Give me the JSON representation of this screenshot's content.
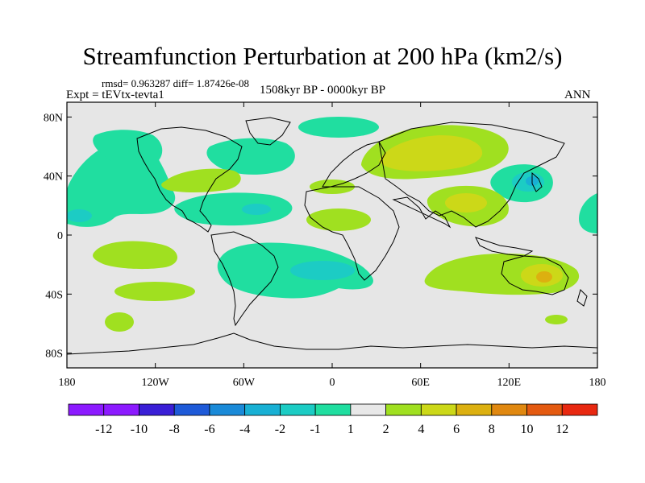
{
  "figure": {
    "title": "Streamfunction Perturbation at 200 hPa (km2/s)",
    "stats": "rmsd= 0.963287 diff= 1.87426e-08",
    "experiment": "Expt = tEVtx-tevta1",
    "period": "1508kyr BP - 0000kyr BP",
    "season": "ANN"
  },
  "axes": {
    "x_ticks": [
      "180",
      "120W",
      "60W",
      "0",
      "60E",
      "120E",
      "180"
    ],
    "y_ticks": [
      "80N",
      "40N",
      "0",
      "40S",
      "80S"
    ]
  },
  "colorbar": {
    "labels": [
      "-12",
      "-10",
      "-8",
      "-6",
      "-4",
      "-2",
      "-1",
      "1",
      "2",
      "4",
      "6",
      "8",
      "10",
      "12"
    ],
    "colors": [
      "#8c1aff",
      "#3a1fd6",
      "#1e5ad8",
      "#1a8ad8",
      "#18b0d4",
      "#1cccc4",
      "#20dea0",
      "#e8e8e8",
      "#a0e020",
      "#ccd818",
      "#dcb010",
      "#e08810",
      "#e45a10",
      "#e82810"
    ]
  },
  "chart_data": {
    "type": "heatmap",
    "projection": "cylindrical equidistant",
    "variable": "Streamfunction Perturbation at 200 hPa",
    "units": "km2/s",
    "lon_range": [
      -180,
      180
    ],
    "lat_range": [
      -90,
      90
    ],
    "contour_levels": [
      -12,
      -10,
      -8,
      -6,
      -4,
      -2,
      -1,
      1,
      2,
      4,
      6,
      8,
      10,
      12
    ],
    "regions": [
      {
        "name": "north-pacific-negative",
        "center": [
          -165,
          33
        ],
        "level": -2,
        "core_level": -4
      },
      {
        "name": "north-america-negative",
        "center": [
          -120,
          58
        ],
        "level": -2
      },
      {
        "name": "arctic-negative",
        "center": [
          -10,
          78
        ],
        "level": -2
      },
      {
        "name": "north-atlantic-negative",
        "center": [
          -40,
          60
        ],
        "level": -2
      },
      {
        "name": "tropical-atlantic-negative",
        "center": [
          -60,
          22
        ],
        "level": -2,
        "core_level": -4
      },
      {
        "name": "east-asia-negative",
        "center": [
          135,
          40
        ],
        "level": -2,
        "core_level": -6
      },
      {
        "name": "south-america-atlantic-negative",
        "center": [
          -15,
          -25
        ],
        "level": -2,
        "core_level": -4
      },
      {
        "name": "eurasia-positive",
        "center": [
          70,
          48
        ],
        "level": 2,
        "core_level": 4
      },
      {
        "name": "south-asia-positive",
        "center": [
          90,
          20
        ],
        "level": 2,
        "core_level": 4
      },
      {
        "name": "australia-positive",
        "center": [
          135,
          -25
        ],
        "level": 2,
        "core_level": 6
      },
      {
        "name": "africa-positive",
        "center": [
          10,
          10
        ],
        "level": 2
      },
      {
        "name": "south-pacific-positive",
        "center": [
          -150,
          -10
        ],
        "level": 2
      },
      {
        "name": "south-pacific-2-positive",
        "center": [
          -150,
          -35
        ],
        "level": 2
      },
      {
        "name": "south-pacific-3-positive",
        "center": [
          -160,
          -58
        ],
        "level": 2
      },
      {
        "name": "atlantic-north-positive",
        "center": [
          -85,
          36
        ],
        "level": 2
      }
    ]
  }
}
